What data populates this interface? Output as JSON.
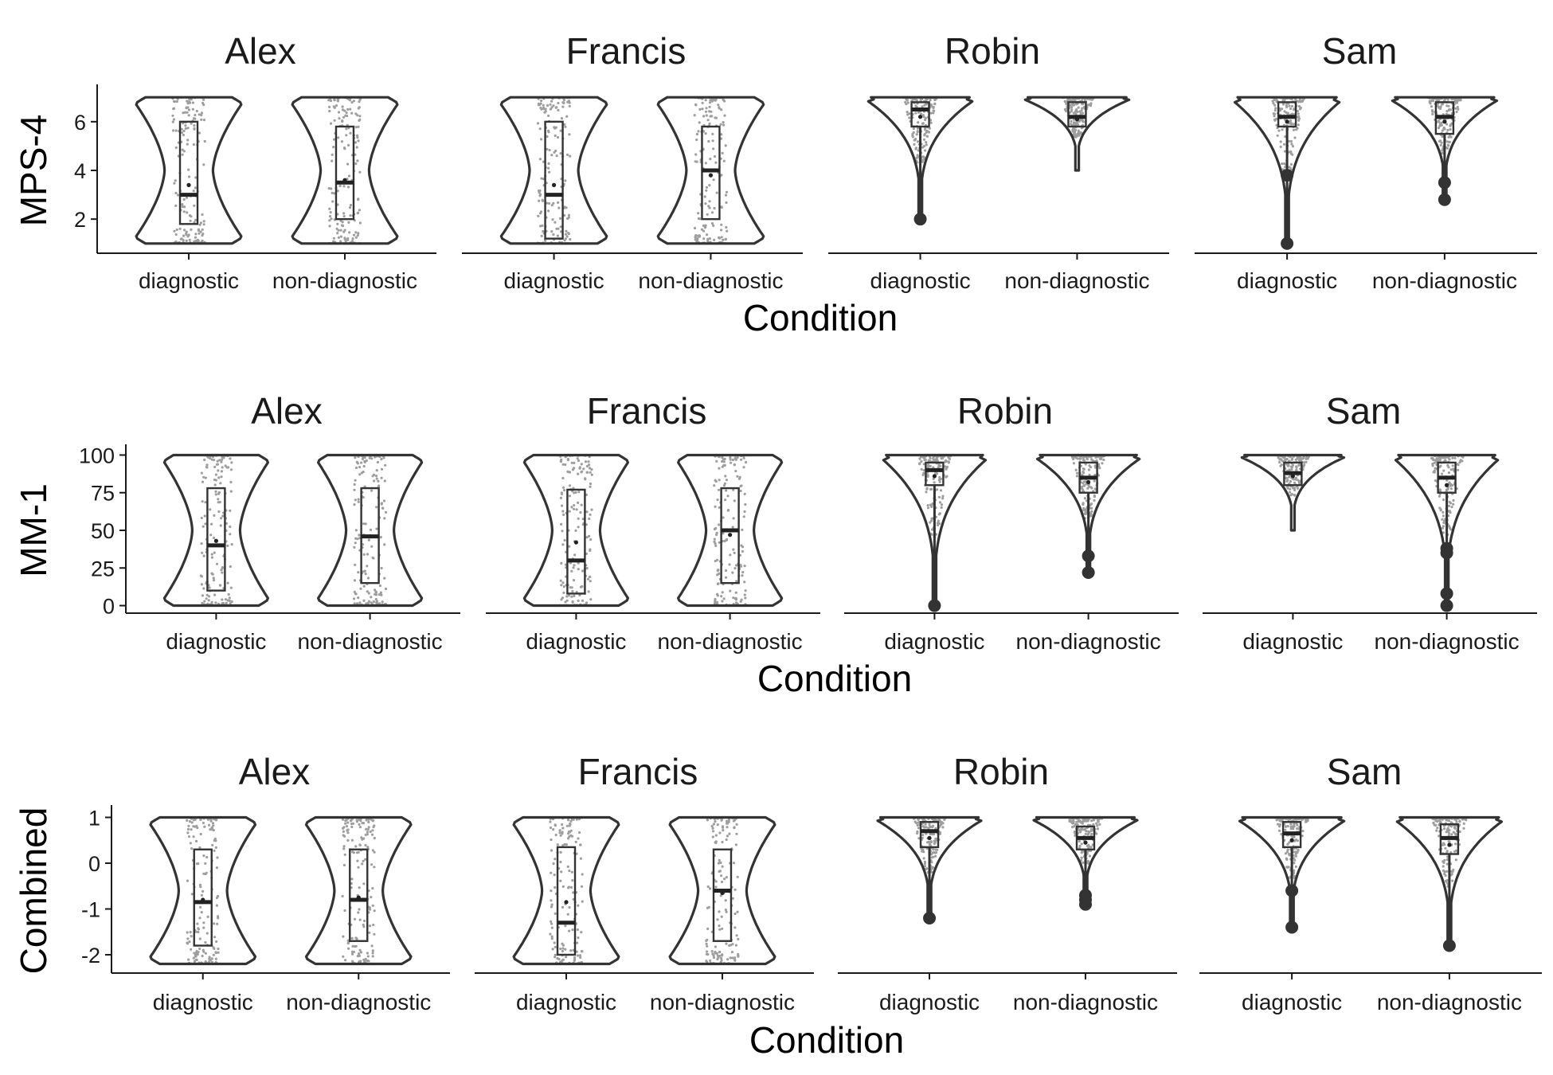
{
  "chart_data": {
    "type": "violin",
    "x_axis_title": "Condition",
    "categories": [
      "diagnostic",
      "non-diagnostic"
    ],
    "panels": [
      "Alex",
      "Francis",
      "Robin",
      "Sam"
    ],
    "rows": [
      {
        "y_axis_title": "MPS-4",
        "yticks": [
          2,
          4,
          6
        ],
        "ylim": [
          0.6,
          7.4
        ],
        "data_range": [
          1,
          7
        ],
        "groups": {
          "Alex": [
            {
              "condition": "diagnostic",
              "shape": "bimodal",
              "q1": 1.8,
              "median": 3.0,
              "q3": 6.0,
              "mean": 3.4,
              "outliers": []
            },
            {
              "condition": "non-diagnostic",
              "shape": "bimodal",
              "q1": 2.0,
              "median": 3.5,
              "q3": 5.8,
              "mean": 3.6,
              "outliers": []
            }
          ],
          "Francis": [
            {
              "condition": "diagnostic",
              "shape": "bimodal",
              "q1": 1.2,
              "median": 3.0,
              "q3": 6.0,
              "mean": 3.4,
              "outliers": []
            },
            {
              "condition": "non-diagnostic",
              "shape": "bimodal",
              "q1": 2.0,
              "median": 4.0,
              "q3": 5.8,
              "mean": 3.8,
              "outliers": []
            }
          ],
          "Robin": [
            {
              "condition": "diagnostic",
              "shape": "top",
              "min": 2,
              "q1": 5.8,
              "median": 6.5,
              "q3": 6.8,
              "mean": 6.2,
              "outliers": [
                2
              ]
            },
            {
              "condition": "non-diagnostic",
              "shape": "top",
              "min": 4,
              "q1": 5.8,
              "median": 6.2,
              "q3": 6.8,
              "mean": 6.1,
              "outliers": []
            }
          ],
          "Sam": [
            {
              "condition": "diagnostic",
              "shape": "top",
              "min": 1,
              "q1": 5.8,
              "median": 6.2,
              "q3": 6.8,
              "mean": 6.0,
              "outliers": [
                3.8,
                1
              ]
            },
            {
              "condition": "non-diagnostic",
              "shape": "top",
              "min": 2.8,
              "q1": 5.5,
              "median": 6.2,
              "q3": 6.8,
              "mean": 6.0,
              "outliers": [
                3.5,
                2.8
              ]
            }
          ]
        }
      },
      {
        "y_axis_title": "MM-1",
        "yticks": [
          0,
          25,
          50,
          75,
          100
        ],
        "ylim": [
          -5,
          105
        ],
        "data_range": [
          0,
          100
        ],
        "groups": {
          "Alex": [
            {
              "condition": "diagnostic",
              "shape": "bimodal",
              "q1": 10,
              "median": 40,
              "q3": 78,
              "mean": 43,
              "outliers": []
            },
            {
              "condition": "non-diagnostic",
              "shape": "bimodal",
              "q1": 15,
              "median": 46,
              "q3": 78,
              "mean": 46,
              "outliers": []
            }
          ],
          "Francis": [
            {
              "condition": "diagnostic",
              "shape": "bimodal",
              "q1": 8,
              "median": 30,
              "q3": 77,
              "mean": 42,
              "outliers": []
            },
            {
              "condition": "non-diagnostic",
              "shape": "bimodal",
              "q1": 15,
              "median": 50,
              "q3": 78,
              "mean": 47,
              "outliers": []
            }
          ],
          "Robin": [
            {
              "condition": "diagnostic",
              "shape": "top",
              "min": 0,
              "q1": 80,
              "median": 90,
              "q3": 95,
              "mean": 86,
              "outliers": [
                0
              ]
            },
            {
              "condition": "non-diagnostic",
              "shape": "top",
              "min": 22,
              "q1": 75,
              "median": 85,
              "q3": 95,
              "mean": 82,
              "outliers": [
                33,
                22
              ]
            }
          ],
          "Sam": [
            {
              "condition": "diagnostic",
              "shape": "top",
              "min": 50,
              "q1": 80,
              "median": 88,
              "q3": 95,
              "mean": 86,
              "outliers": []
            },
            {
              "condition": "non-diagnostic",
              "shape": "top",
              "min": 0,
              "q1": 75,
              "median": 85,
              "q3": 95,
              "mean": 80,
              "outliers": [
                38,
                35,
                8,
                0
              ]
            }
          ]
        }
      },
      {
        "y_axis_title": "Combined",
        "yticks": [
          -2,
          -1,
          0,
          1
        ],
        "yticklabels": [
          "-2",
          "-1",
          "0",
          "1"
        ],
        "ylim": [
          -2.4,
          1.2
        ],
        "data_range": [
          -2.2,
          1
        ],
        "groups": {
          "Alex": [
            {
              "condition": "diagnostic",
              "shape": "bimodal",
              "q1": -1.8,
              "median": -0.85,
              "q3": 0.3,
              "mean": -0.8,
              "outliers": []
            },
            {
              "condition": "non-diagnostic",
              "shape": "bimodal",
              "q1": -1.7,
              "median": -0.8,
              "q3": 0.3,
              "mean": -0.75,
              "outliers": []
            }
          ],
          "Francis": [
            {
              "condition": "diagnostic",
              "shape": "bimodal",
              "q1": -2.0,
              "median": -1.3,
              "q3": 0.35,
              "mean": -0.85,
              "outliers": []
            },
            {
              "condition": "non-diagnostic",
              "shape": "bimodal",
              "q1": -1.7,
              "median": -0.6,
              "q3": 0.3,
              "mean": -0.65,
              "outliers": []
            }
          ],
          "Robin": [
            {
              "condition": "diagnostic",
              "shape": "top",
              "min": -1.2,
              "q1": 0.35,
              "median": 0.7,
              "q3": 0.9,
              "mean": 0.55,
              "outliers": [
                -1.2
              ]
            },
            {
              "condition": "non-diagnostic",
              "shape": "top",
              "min": -0.9,
              "q1": 0.3,
              "median": 0.55,
              "q3": 0.8,
              "mean": 0.45,
              "outliers": [
                -0.7,
                -0.8,
                -0.9
              ]
            }
          ],
          "Sam": [
            {
              "condition": "diagnostic",
              "shape": "top",
              "min": -1.4,
              "q1": 0.35,
              "median": 0.65,
              "q3": 0.9,
              "mean": 0.5,
              "outliers": [
                -0.6,
                -1.4
              ]
            },
            {
              "condition": "non-diagnostic",
              "shape": "top",
              "min": -1.8,
              "q1": 0.2,
              "median": 0.55,
              "q3": 0.85,
              "mean": 0.4,
              "outliers": [
                -1.8
              ]
            }
          ]
        }
      }
    ]
  }
}
